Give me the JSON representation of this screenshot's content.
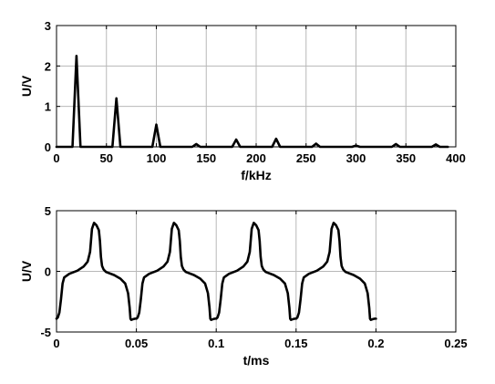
{
  "chart_data": [
    {
      "type": "line",
      "xlabel": "f/kHz",
      "ylabel": "U/V",
      "xlim": [
        0,
        400
      ],
      "ylim": [
        0,
        3
      ],
      "xticks": [
        0,
        50,
        100,
        150,
        200,
        250,
        300,
        350,
        400
      ],
      "yticks": [
        0,
        1,
        2,
        3
      ],
      "grid": true,
      "series": [
        {
          "x": [
            0,
            16,
            20,
            24,
            56,
            60,
            64,
            96,
            100,
            104,
            136,
            140,
            144,
            176,
            180,
            184,
            216,
            220,
            224,
            256,
            260,
            264,
            296,
            300,
            304,
            336,
            340,
            344,
            376,
            380,
            384,
            392
          ],
          "y": [
            0,
            0,
            2.25,
            0,
            0,
            1.2,
            0,
            0,
            0.55,
            0,
            0,
            0.07,
            0,
            0,
            0.18,
            0,
            0,
            0.2,
            0,
            0,
            0.08,
            0,
            0,
            0.03,
            0,
            0,
            0.07,
            0,
            0,
            0.06,
            0,
            0
          ]
        }
      ]
    },
    {
      "type": "line",
      "xlabel": "t/ms",
      "ylabel": "U/V",
      "xlim": [
        0,
        0.25
      ],
      "ylim": [
        -5,
        5
      ],
      "xticks": [
        0,
        0.05,
        0.1,
        0.15,
        0.2,
        0.25
      ],
      "yticks": [
        -5,
        0,
        5
      ],
      "ytick_labels": [
        "-5",
        "0",
        "5"
      ],
      "grid": true,
      "period_ms": 0.05,
      "series": [
        {
          "x_range": [
            0,
            0.2
          ],
          "one_period": {
            "x": [
              0,
              0.0008,
              0.0018,
              0.0028,
              0.0038,
              0.0048,
              0.008,
              0.013,
              0.017,
              0.0195,
              0.021,
              0.0222,
              0.0235,
              0.025,
              0.0265,
              0.0272,
              0.0278,
              0.0285,
              0.0295,
              0.031,
              0.036,
              0.04,
              0.043,
              0.0448,
              0.0458,
              0.0463,
              0.0468,
              0.0478,
              0.0492,
              0.05
            ],
            "y": [
              -3.9,
              -3.8,
              -3.4,
              -2.3,
              -1.0,
              -0.5,
              -0.2,
              0.05,
              0.4,
              0.8,
              1.6,
              3.5,
              4.0,
              3.8,
              3.4,
              2.5,
              1.2,
              0.45,
              0.15,
              -0.05,
              -0.3,
              -0.6,
              -1.0,
              -1.8,
              -3.0,
              -3.9,
              -4.0,
              -3.95,
              -3.9,
              -3.9
            ]
          }
        }
      ]
    }
  ]
}
